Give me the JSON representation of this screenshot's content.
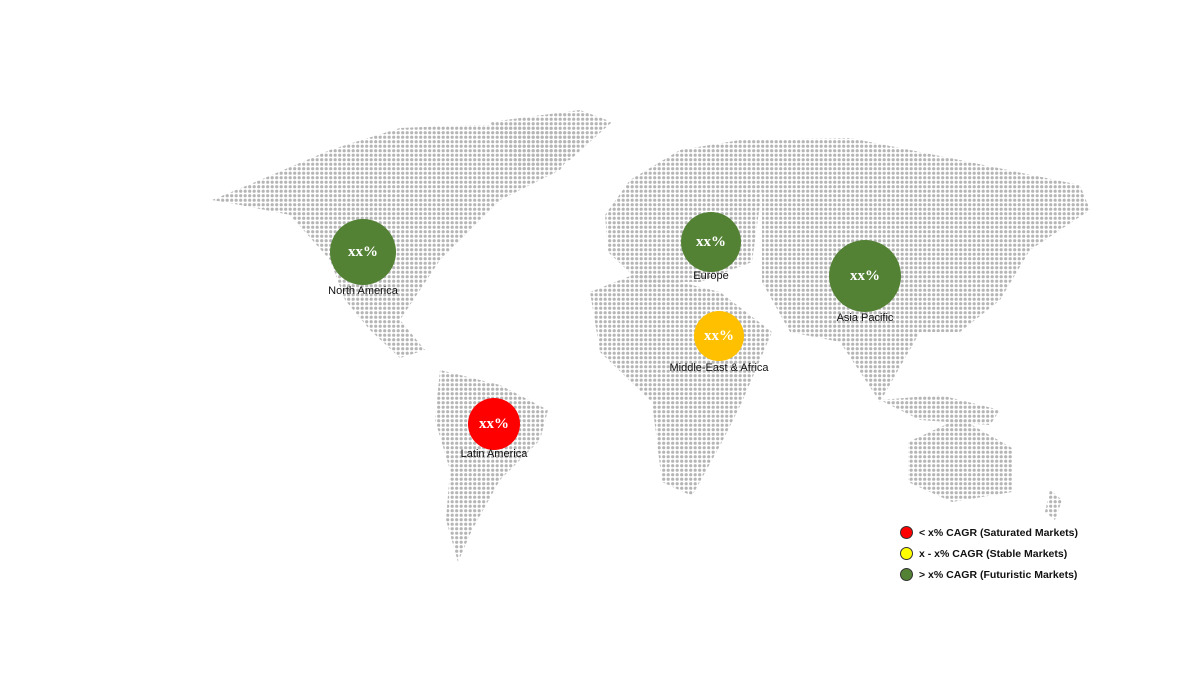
{
  "colors": {
    "saturated": "#ff0000",
    "stable": "#ffc000",
    "futuristic": "#548235",
    "legend_stable": "#ffff00",
    "map_dots": "#b5b5b5"
  },
  "regions": [
    {
      "name": "North America",
      "value": "xx%",
      "status": "futuristic"
    },
    {
      "name": "Europe",
      "value": "xx%",
      "status": "futuristic"
    },
    {
      "name": "Asia Pacific",
      "value": "xx%",
      "status": "futuristic"
    },
    {
      "name": "Middle-East & Africa",
      "value": "xx%",
      "status": "stable"
    },
    {
      "name": "Latin America",
      "value": "xx%",
      "status": "saturated"
    }
  ],
  "legend": [
    {
      "label": "< x% CAGR (Saturated Markets)",
      "color": "#ff0000"
    },
    {
      "label": "x - x% CAGR (Stable Markets)",
      "color": "#ffff00"
    },
    {
      "label": "> x% CAGR (Futuristic Markets)",
      "color": "#548235"
    }
  ]
}
